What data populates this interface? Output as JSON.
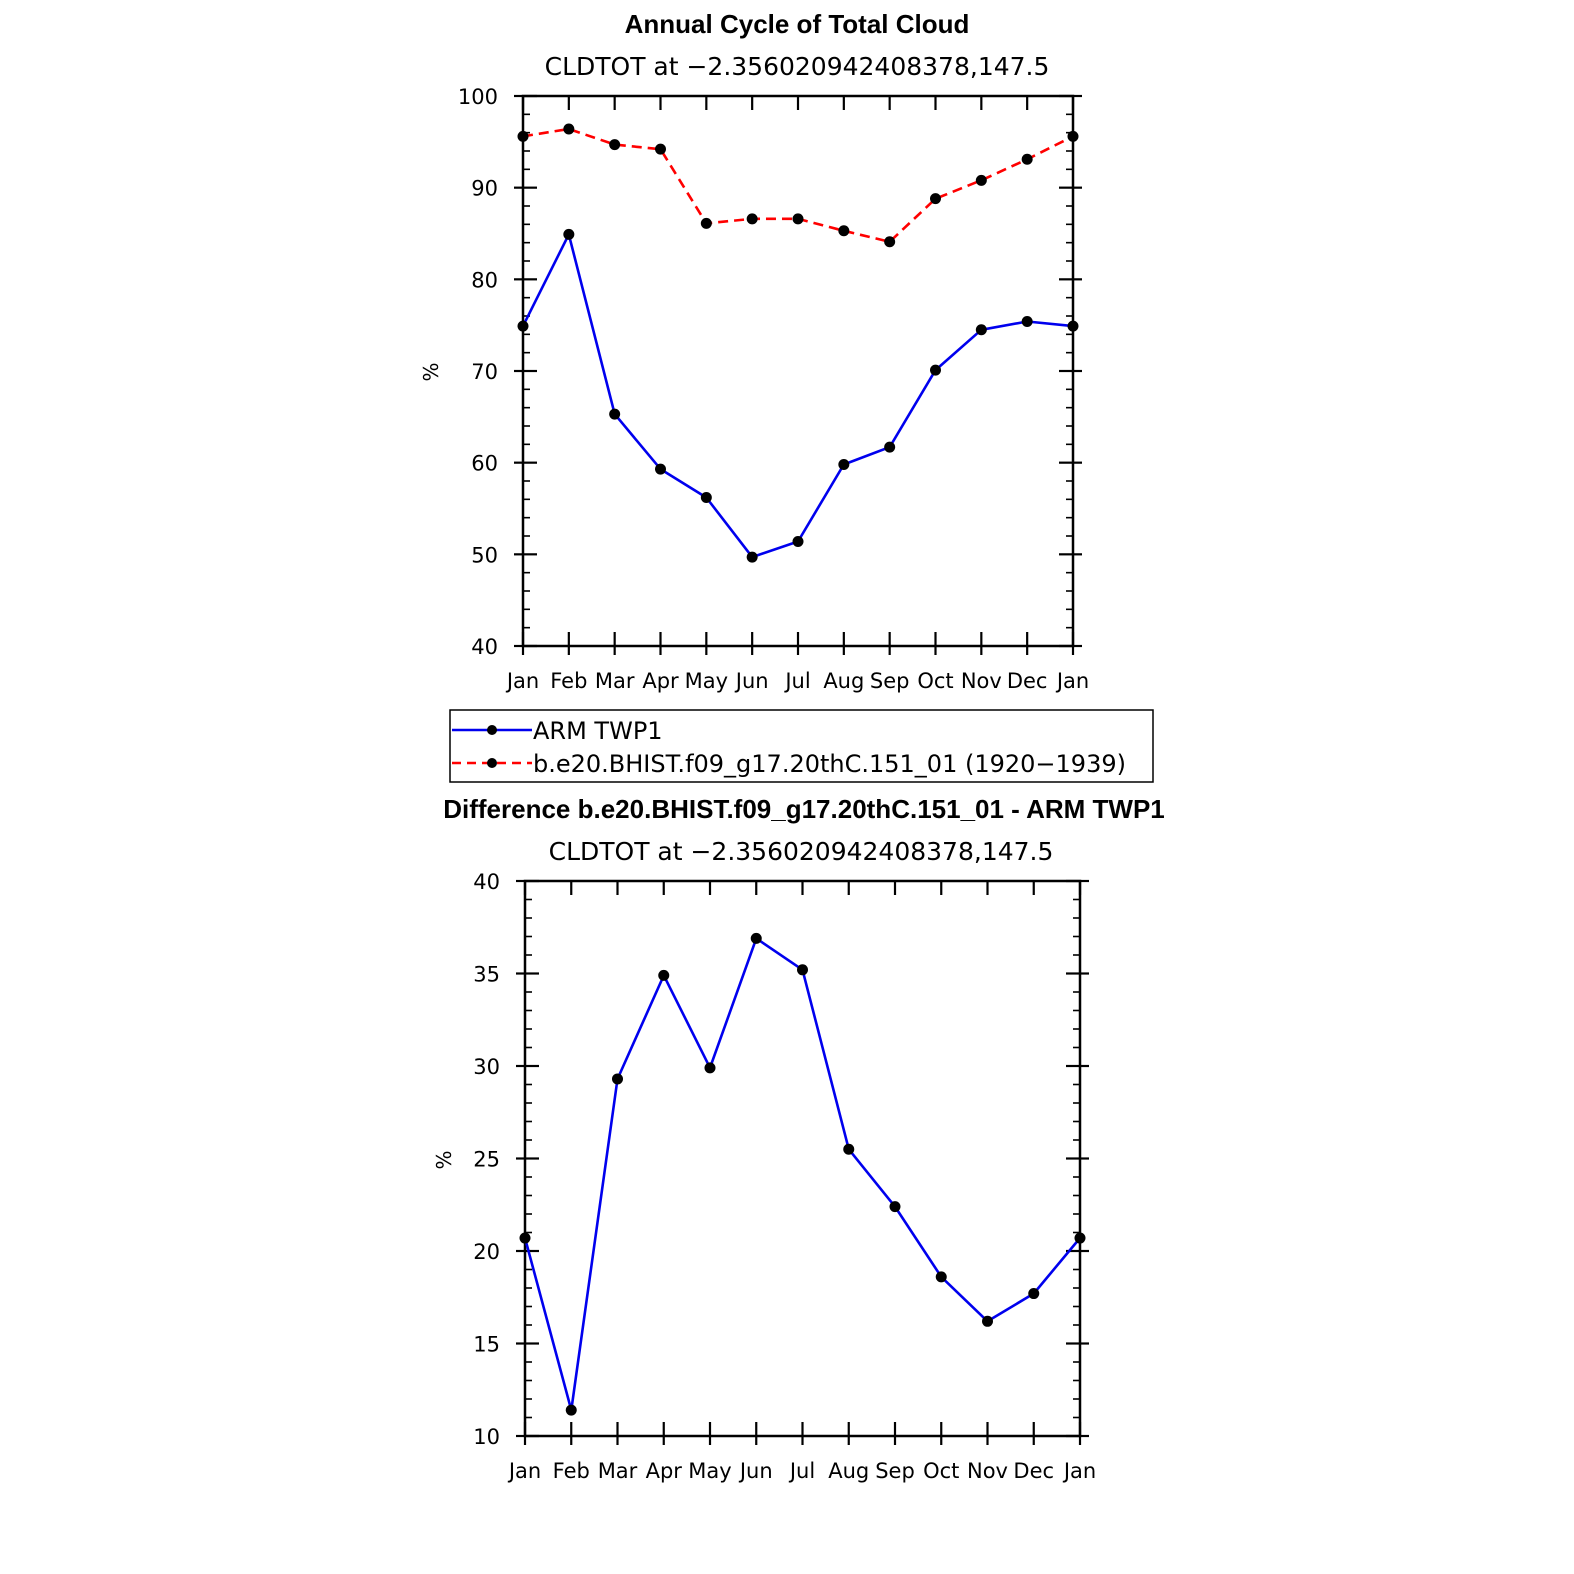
{
  "colors": {
    "model": "#ff0000",
    "obs": "#0000ee",
    "marker": "#000000",
    "axis": "#000000"
  },
  "legend": {
    "items": [
      {
        "label": "ARM TWP1",
        "color": "#0000ee",
        "dash": false
      },
      {
        "label": "b.e20.BHIST.f09_g17.20thC.151_01 (1920−1939)",
        "color": "#ff0000",
        "dash": true
      }
    ]
  },
  "chart_data": [
    {
      "type": "line",
      "title": "Annual Cycle of Total Cloud",
      "subtitle": "CLDTOT at −2.356020942408378,147.5",
      "ylabel": "%",
      "ylim": [
        40,
        100
      ],
      "yticks": [
        40,
        50,
        60,
        70,
        80,
        90,
        100
      ],
      "categories": [
        "Jan",
        "Feb",
        "Mar",
        "Apr",
        "May",
        "Jun",
        "Jul",
        "Aug",
        "Sep",
        "Oct",
        "Nov",
        "Dec",
        "Jan"
      ],
      "series": [
        {
          "name": "ARM TWP1",
          "color": "#0000ee",
          "dash": false,
          "values": [
            74.9,
            84.9,
            65.3,
            59.3,
            56.2,
            49.7,
            51.4,
            59.8,
            61.7,
            70.1,
            74.5,
            75.4,
            74.9
          ]
        },
        {
          "name": "b.e20.BHIST.f09_g17.20thC.151_01 (1920−1939)",
          "color": "#ff0000",
          "dash": true,
          "values": [
            95.6,
            96.4,
            94.7,
            94.2,
            86.1,
            86.6,
            86.6,
            85.3,
            84.1,
            88.8,
            90.8,
            93.1,
            95.6
          ]
        }
      ]
    },
    {
      "type": "line",
      "title": "Difference b.e20.BHIST.f09_g17.20thC.151_01 - ARM TWP1",
      "subtitle": "CLDTOT at −2.356020942408378,147.5",
      "ylabel": "%",
      "ylim": [
        10,
        40
      ],
      "yticks": [
        10,
        15,
        20,
        25,
        30,
        35,
        40
      ],
      "categories": [
        "Jan",
        "Feb",
        "Mar",
        "Apr",
        "May",
        "Jun",
        "Jul",
        "Aug",
        "Sep",
        "Oct",
        "Nov",
        "Dec",
        "Jan"
      ],
      "series": [
        {
          "color": "#0000ee",
          "dash": false,
          "values": [
            20.7,
            11.4,
            29.3,
            34.9,
            29.9,
            36.9,
            35.2,
            25.5,
            22.4,
            18.6,
            16.2,
            17.7,
            20.7
          ]
        }
      ]
    }
  ]
}
